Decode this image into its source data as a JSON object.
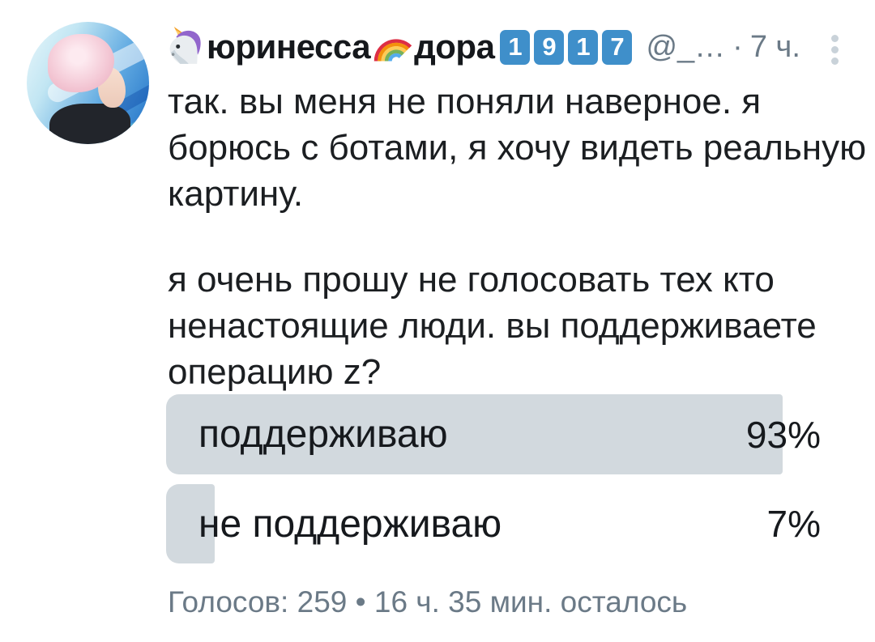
{
  "header": {
    "display_name_part1": "юринесса",
    "display_name_part2": "дора",
    "keycap_digits": [
      "1",
      "9",
      "1",
      "7"
    ],
    "handle": "@_…",
    "separator": "·",
    "timestamp": "7 ч.",
    "icons": {
      "before_name": "unicorn-emoji",
      "middle_name": "rainbow-emoji",
      "right": "more-vertical-icon"
    }
  },
  "tweet": {
    "paragraph1_lines": [
      "так. вы меня не поняли наверное. я",
      "борюсь с ботами, я хочу видеть реальную",
      "картину."
    ],
    "paragraph2_lines": [
      "я очень прошу не голосовать тех кто",
      "ненастоящие люди. вы поддерживаете",
      "операцию z?"
    ]
  },
  "poll": {
    "options": [
      {
        "label": "поддерживаю",
        "percent": "93%",
        "value": 93
      },
      {
        "label": "не поддерживаю",
        "percent": "7%",
        "value": 7
      }
    ],
    "votes_count": "259",
    "footer": "Голосов: 259 • 16 ч. 35 мин. осталось"
  },
  "colors": {
    "poll_bar": "#d2d9de",
    "keycap_blue": "#3f8fca",
    "gray_text": "#6b7a87",
    "text": "#1b1e21"
  }
}
